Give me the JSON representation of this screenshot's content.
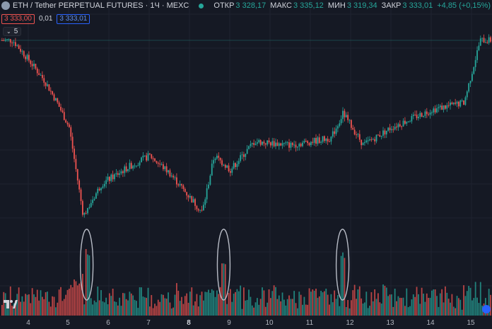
{
  "header": {
    "symbol_title": "ETH / Tether PERPETUAL FUTURES · 1Ч · MEXC",
    "ohlc": [
      {
        "label": "ОТКР",
        "value": "3 328,17"
      },
      {
        "label": "МАКС",
        "value": "3 335,12"
      },
      {
        "label": "МИН",
        "value": "3 319,34"
      },
      {
        "label": "ЗАКР",
        "value": "3 333,01"
      }
    ],
    "change": "+4,85 (+0,15%)"
  },
  "trade": {
    "sell_price": "3 333,00",
    "spread": "0,01",
    "buy_price": "3 333,01"
  },
  "indicators": {
    "toggle_label": "5"
  },
  "time_axis": {
    "ticks": [
      "4",
      "5",
      "6",
      "7",
      "8",
      "9",
      "10",
      "11",
      "12",
      "13",
      "14",
      "15"
    ]
  },
  "colors": {
    "background": "#151924",
    "up": "#26a69a",
    "down": "#ef5350",
    "grid": "#1f2330",
    "annotation": "#b8bcc6"
  },
  "icons": {
    "tradingview_logo": "tradingview-logo-icon",
    "symbol": "eth-icon",
    "status": "market-open-icon"
  },
  "chart_data": {
    "type": "candlestick",
    "interval": "1h",
    "x_axis_days": [
      4,
      5,
      6,
      7,
      8,
      9,
      10,
      11,
      12,
      13,
      14,
      15
    ],
    "price_path_approx": [
      {
        "day": 3.6,
        "price": 3318
      },
      {
        "day": 4.0,
        "price": 3290
      },
      {
        "day": 4.4,
        "price": 3260
      },
      {
        "day": 4.7,
        "price": 3230
      },
      {
        "day": 5.0,
        "price": 3195
      },
      {
        "day": 5.35,
        "price": 3070
      },
      {
        "day": 5.8,
        "price": 3115
      },
      {
        "day": 6.5,
        "price": 3140
      },
      {
        "day": 7.0,
        "price": 3155
      },
      {
        "day": 7.5,
        "price": 3130
      },
      {
        "day": 8.3,
        "price": 3075
      },
      {
        "day": 8.6,
        "price": 3155
      },
      {
        "day": 9.0,
        "price": 3135
      },
      {
        "day": 9.6,
        "price": 3175
      },
      {
        "day": 10.5,
        "price": 3170
      },
      {
        "day": 11.5,
        "price": 3180
      },
      {
        "day": 11.8,
        "price": 3215
      },
      {
        "day": 12.3,
        "price": 3170
      },
      {
        "day": 13.0,
        "price": 3195
      },
      {
        "day": 14.0,
        "price": 3220
      },
      {
        "day": 14.8,
        "price": 3230
      },
      {
        "day": 15.2,
        "price": 3318
      }
    ],
    "volume_spikes_day": [
      5.45,
      8.85,
      11.8
    ]
  }
}
